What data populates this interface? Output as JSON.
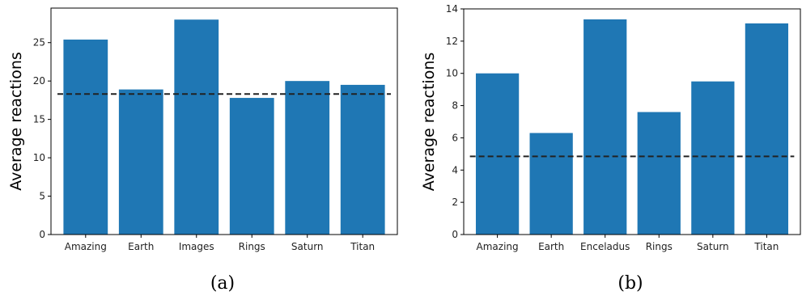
{
  "colors": {
    "bar": "#1f77b4",
    "reference_line": "#222222"
  },
  "chart_data": [
    {
      "type": "bar",
      "caption": "(a)",
      "title": "",
      "xlabel": "",
      "ylabel": "Average reactions",
      "categories": [
        "Amazing",
        "Earth",
        "Images",
        "Rings",
        "Saturn",
        "Titan"
      ],
      "values": [
        25.4,
        18.9,
        28.0,
        17.8,
        20.0,
        19.5
      ],
      "ylim": [
        0,
        29.5
      ],
      "yticks": [
        0,
        5,
        10,
        15,
        20,
        25
      ],
      "reference_line": {
        "style": "dashed",
        "value": 18.3
      },
      "grid": false,
      "legend": "none"
    },
    {
      "type": "bar",
      "caption": "(b)",
      "title": "",
      "xlabel": "",
      "ylabel": "Average reactions",
      "categories": [
        "Amazing",
        "Earth",
        "Enceladus",
        "Rings",
        "Saturn",
        "Titan"
      ],
      "values": [
        10.0,
        6.3,
        13.35,
        7.6,
        9.5,
        13.1
      ],
      "ylim": [
        0,
        14
      ],
      "yticks": [
        0,
        2,
        4,
        6,
        8,
        10,
        12,
        14
      ],
      "reference_line": {
        "style": "dashed",
        "value": 4.85
      },
      "grid": false,
      "legend": "none"
    }
  ]
}
